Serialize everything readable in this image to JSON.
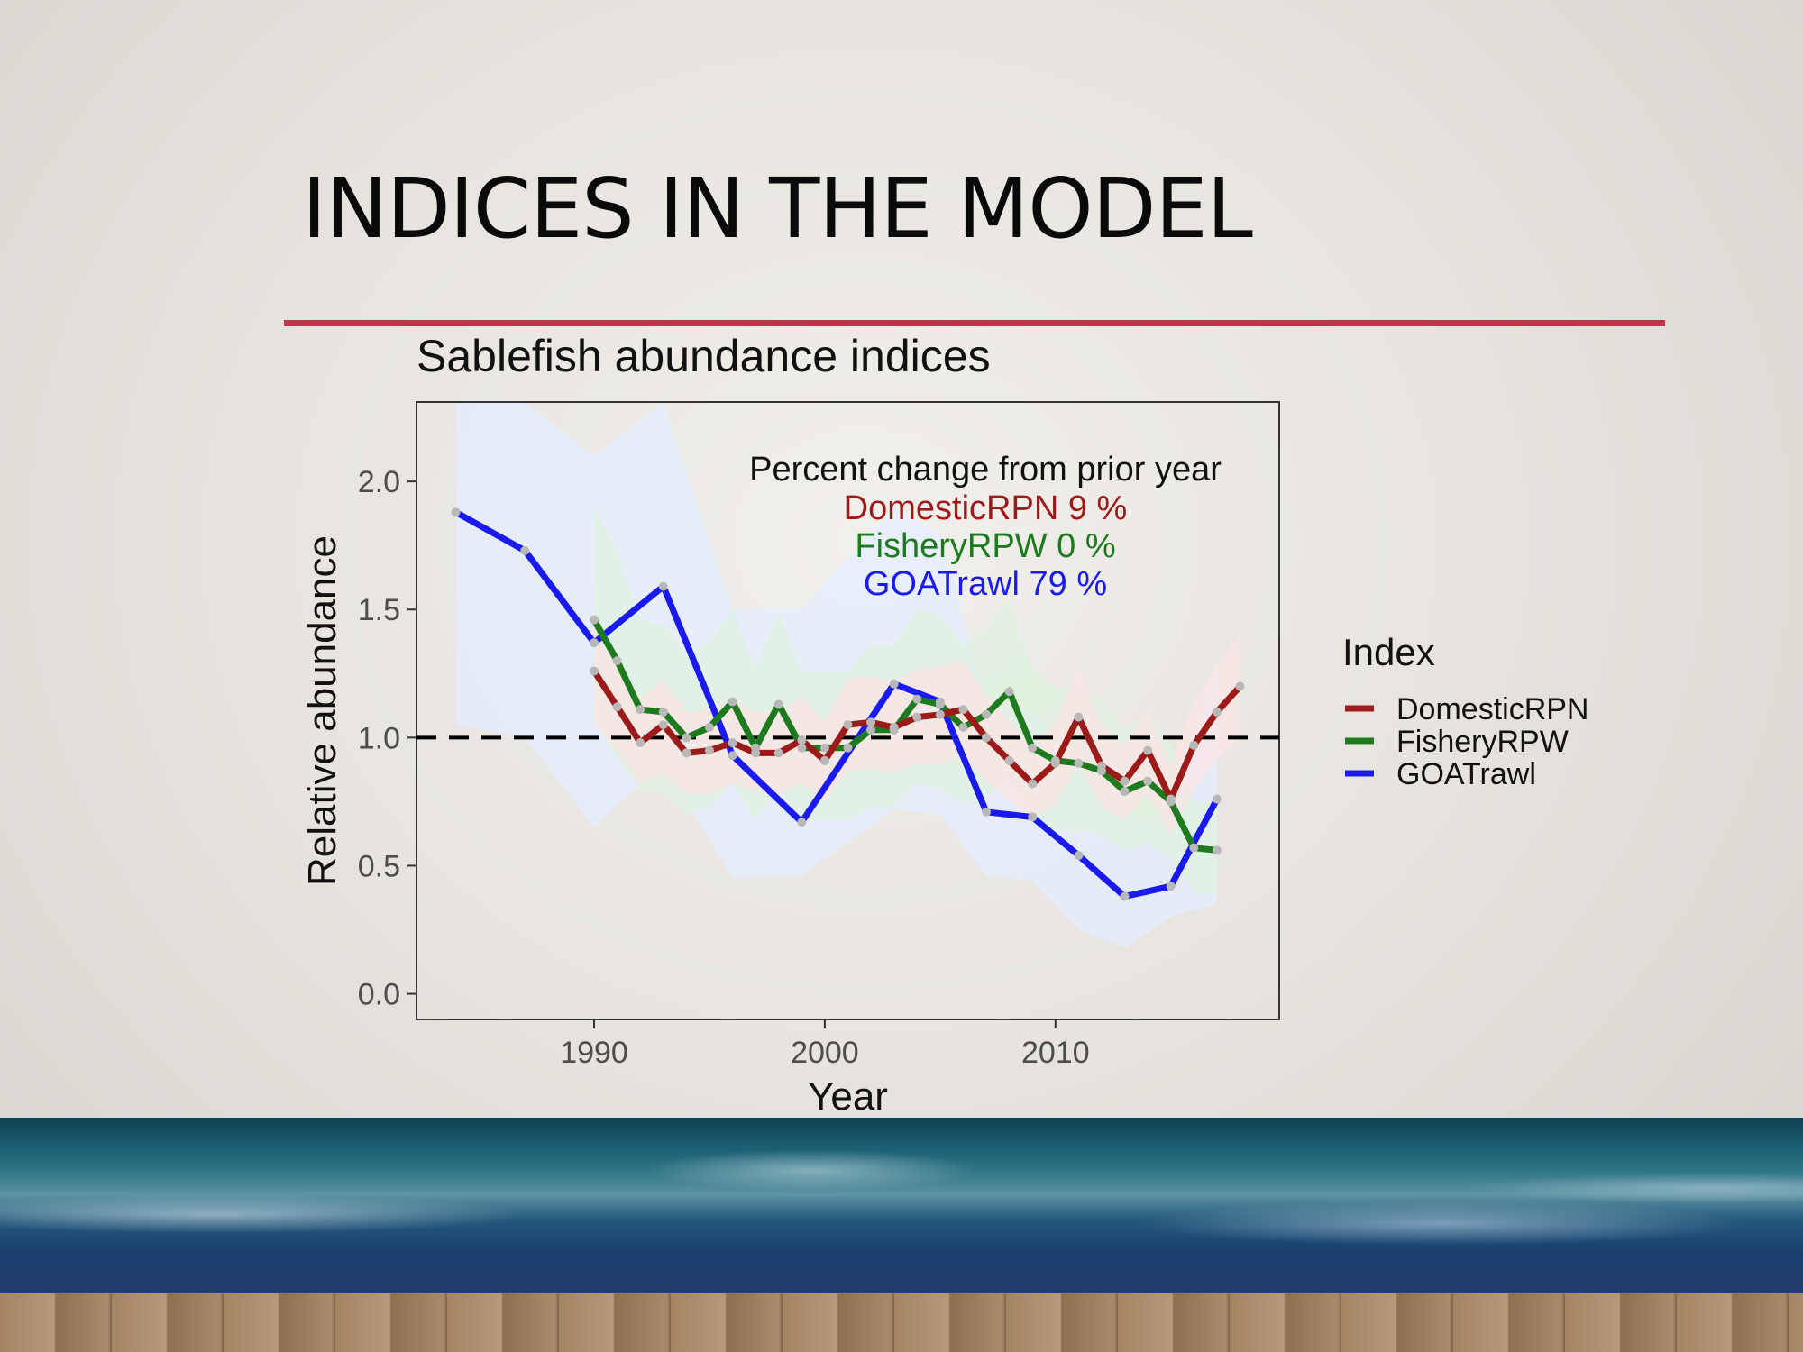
{
  "slide": {
    "title": "INDICES IN THE MODEL",
    "accent_color": "#c0344a"
  },
  "chart_data": {
    "type": "line",
    "title": "Sablefish abundance indices",
    "xlabel": "Year",
    "ylabel": "Relative abundance",
    "xlim": [
      1982.3,
      2019.7
    ],
    "ylim": [
      -0.1,
      2.31
    ],
    "x_ticks": [
      1990,
      2000,
      2010
    ],
    "y_ticks": [
      0.0,
      0.5,
      1.0,
      1.5,
      2.0
    ],
    "y_tick_labels": [
      "0.0",
      "0.5",
      "1.0",
      "1.5",
      "2.0"
    ],
    "reference_line": 1.0,
    "legend_title": "Index",
    "legend_position": "right",
    "annotation": {
      "heading": "Percent change from prior year",
      "lines": [
        {
          "text": "DomesticRPN 9 %",
          "color": "#9b1b1b"
        },
        {
          "text": "FisheryRPW 0 %",
          "color": "#1e7a1e"
        },
        {
          "text": "GOATrawl 79 %",
          "color": "#1a1aee"
        }
      ]
    },
    "series": [
      {
        "name": "DomesticRPN",
        "color": "#9b1b1b",
        "x": [
          1990,
          1991,
          1992,
          1993,
          1994,
          1995,
          1996,
          1997,
          1998,
          1999,
          2000,
          2001,
          2002,
          2003,
          2004,
          2005,
          2006,
          2007,
          2008,
          2009,
          2010,
          2011,
          2012,
          2013,
          2014,
          2015,
          2016,
          2017,
          2018
        ],
        "y": [
          1.26,
          1.12,
          0.98,
          1.05,
          0.94,
          0.95,
          0.98,
          0.94,
          0.94,
          0.99,
          0.91,
          1.05,
          1.06,
          1.04,
          1.08,
          1.09,
          1.11,
          1.0,
          0.91,
          0.82,
          0.9,
          1.08,
          0.89,
          0.83,
          0.95,
          0.76,
          0.97,
          1.1,
          1.2
        ],
        "lower": [
          1.05,
          0.95,
          0.82,
          0.86,
          0.78,
          0.78,
          0.82,
          0.79,
          0.78,
          0.82,
          0.75,
          0.87,
          0.88,
          0.86,
          0.9,
          0.9,
          0.92,
          0.83,
          0.75,
          0.68,
          0.74,
          0.89,
          0.73,
          0.68,
          0.78,
          0.62,
          0.8,
          0.91,
          0.99
        ],
        "upper": [
          1.48,
          1.31,
          1.15,
          1.23,
          1.1,
          1.11,
          1.15,
          1.1,
          1.1,
          1.16,
          1.07,
          1.23,
          1.24,
          1.22,
          1.27,
          1.28,
          1.3,
          1.17,
          1.07,
          0.96,
          1.06,
          1.27,
          1.05,
          0.97,
          1.11,
          0.89,
          1.14,
          1.29,
          1.4
        ]
      },
      {
        "name": "FisheryRPW",
        "color": "#1e7a1e",
        "x": [
          1990,
          1991,
          1992,
          1993,
          1994,
          1995,
          1996,
          1997,
          1998,
          1999,
          2000,
          2001,
          2002,
          2003,
          2004,
          2005,
          2006,
          2007,
          2008,
          2009,
          2010,
          2011,
          2012,
          2013,
          2014,
          2015,
          2016,
          2017
        ],
        "y": [
          1.46,
          1.3,
          1.11,
          1.1,
          1.0,
          1.04,
          1.14,
          0.96,
          1.13,
          0.96,
          0.96,
          0.96,
          1.03,
          1.03,
          1.15,
          1.13,
          1.04,
          1.09,
          1.18,
          0.96,
          0.91,
          0.9,
          0.87,
          0.79,
          0.83,
          0.75,
          0.57,
          0.56
        ],
        "lower": [
          1.07,
          0.92,
          0.8,
          0.78,
          0.7,
          0.73,
          0.82,
          0.68,
          0.8,
          0.68,
          0.68,
          0.68,
          0.73,
          0.73,
          0.82,
          0.8,
          0.74,
          0.77,
          0.84,
          0.68,
          0.64,
          0.64,
          0.62,
          0.56,
          0.59,
          0.53,
          0.4,
          0.39
        ],
        "upper": [
          1.9,
          1.72,
          1.46,
          1.44,
          1.32,
          1.37,
          1.5,
          1.27,
          1.49,
          1.26,
          1.26,
          1.26,
          1.36,
          1.36,
          1.5,
          1.48,
          1.36,
          1.43,
          1.55,
          1.26,
          1.2,
          1.18,
          1.15,
          1.04,
          1.09,
          0.98,
          0.75,
          0.74
        ]
      },
      {
        "name": "GOATrawl",
        "color": "#1a1aee",
        "x": [
          1984,
          1987,
          1990,
          1993,
          1996,
          1999,
          2003,
          2005,
          2007,
          2009,
          2011,
          2013,
          2015,
          2017
        ],
        "y": [
          1.88,
          1.73,
          1.37,
          1.59,
          0.93,
          0.67,
          1.21,
          1.14,
          0.71,
          0.69,
          0.54,
          0.38,
          0.42,
          0.76
        ],
        "lower": [
          1.05,
          1.0,
          0.65,
          0.9,
          0.45,
          0.46,
          0.72,
          0.7,
          0.46,
          0.44,
          0.25,
          0.18,
          0.3,
          0.35
        ],
        "upper": [
          2.31,
          2.31,
          2.1,
          2.31,
          1.5,
          1.5,
          1.9,
          1.8,
          1.15,
          1.1,
          0.95,
          0.7,
          0.65,
          1.32
        ]
      }
    ]
  }
}
